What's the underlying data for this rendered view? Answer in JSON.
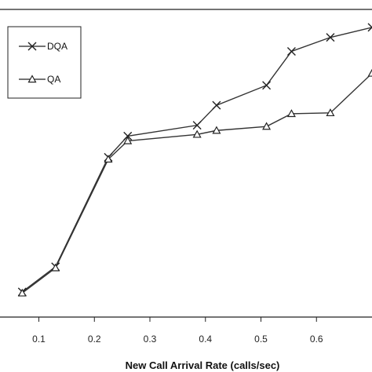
{
  "chart_data": {
    "type": "line",
    "title": "",
    "xlabel": "New Call Arrival Rate (calls/sec)",
    "ylabel": "",
    "xlim": [
      0.03,
      0.7
    ],
    "x_ticks": [
      "0.1",
      "0.2",
      "0.3",
      "0.4",
      "0.5",
      "0.6"
    ],
    "legend_position": "top-left",
    "grid": false,
    "series": [
      {
        "name": "DQA",
        "marker": "x",
        "color": "#333333",
        "x": [
          0.07,
          0.13,
          0.225,
          0.26,
          0.385,
          0.42,
          0.51,
          0.555,
          0.625,
          0.7
        ],
        "y": [
          0.43,
          1.06,
          3.8,
          4.33,
          4.6,
          5.1,
          5.6,
          6.45,
          6.8,
          7.05
        ]
      },
      {
        "name": "QA",
        "marker": "triangle",
        "color": "#333333",
        "x": [
          0.07,
          0.13,
          0.225,
          0.26,
          0.385,
          0.42,
          0.51,
          0.555,
          0.625,
          0.7
        ],
        "y": [
          0.4,
          1.03,
          3.75,
          4.21,
          4.37,
          4.47,
          4.57,
          4.89,
          4.91,
          5.9
        ]
      }
    ]
  }
}
